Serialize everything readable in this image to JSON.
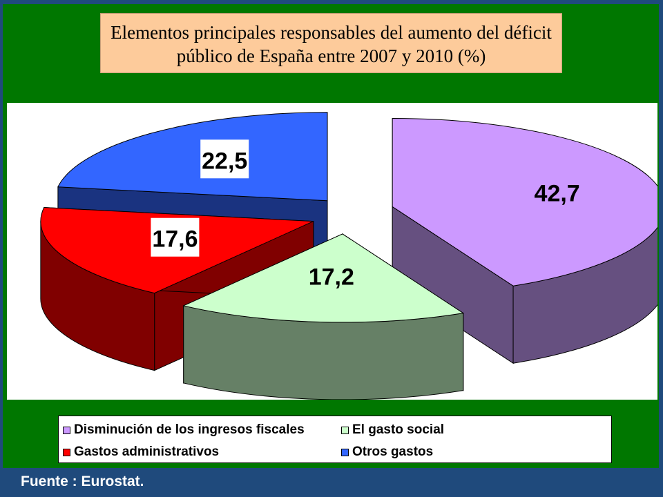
{
  "title": {
    "line1": "Elementos principales responsables del aumento del déficit",
    "line2": "público de España entre 2007 y 2010 (%)"
  },
  "source": "Fuente : Eurostat.",
  "chart_data": {
    "type": "pie",
    "title": "Elementos principales responsables del aumento del déficit público de España entre 2007 y 2010 (%)",
    "categories": [
      "Disminución de los ingresos fiscales",
      "El gasto social",
      "Gastos administrativos",
      "Otros gastos"
    ],
    "values": [
      42.7,
      17.2,
      17.6,
      22.5
    ],
    "labels": [
      "42,7",
      "17,2",
      "17,6",
      "22,5"
    ],
    "colors": [
      "#cc99ff",
      "#ccffcc",
      "#ff0000",
      "#3366ff"
    ],
    "style": "3d-exploded",
    "legend_position": "bottom"
  }
}
